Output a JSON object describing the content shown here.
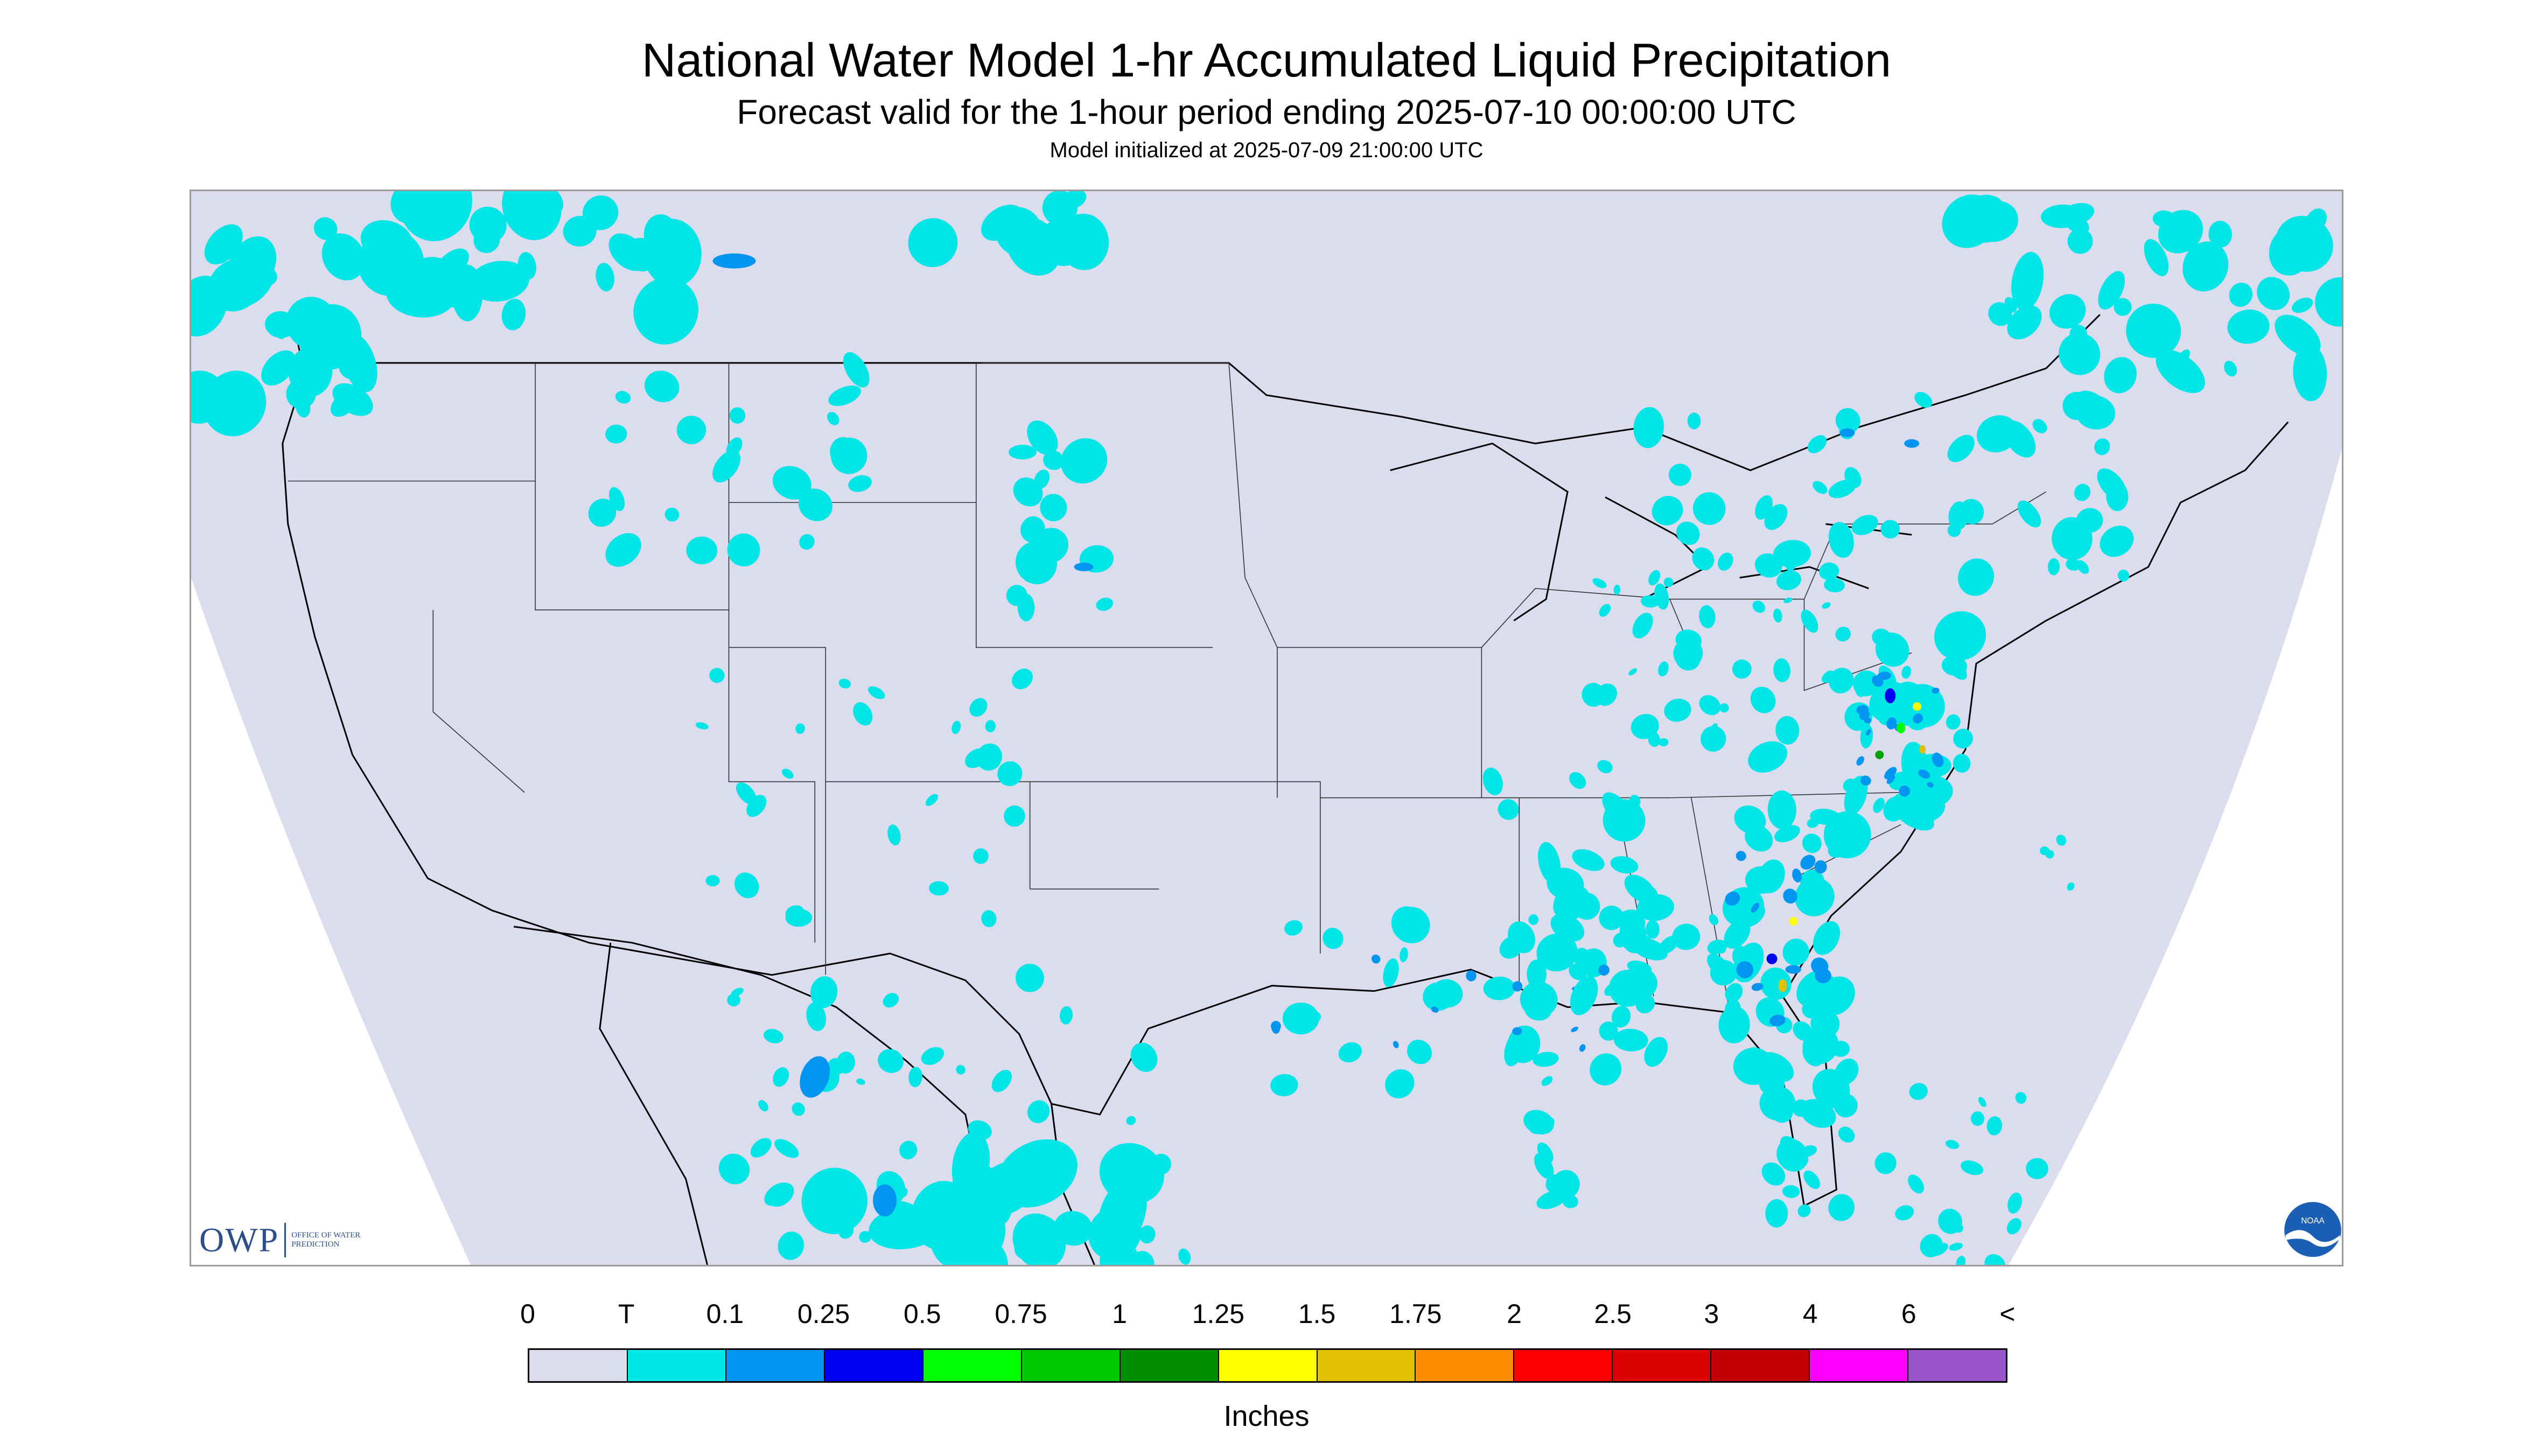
{
  "header": {
    "title": "National Water Model 1-hr Accumulated Liquid Precipitation",
    "subtitle": "Forecast valid for the 1-hour period ending 2025-07-10 00:00:00 UTC",
    "init_line": "Model initialized at 2025-07-09 21:00:00 UTC"
  },
  "map": {
    "background_color": "#dcdcef",
    "outside_projection_color": "#ffffff",
    "boundary_line_color": "#000000",
    "precip_colors": {
      "trace": "#00e5e5",
      "light": "#0096f0",
      "moderate": "#0000f0",
      "green": "#00ff00",
      "green_dark": "#00a000",
      "yellow": "#ffff00",
      "gold": "#e0c000"
    }
  },
  "logos": {
    "owp_mark": "OWP",
    "owp_text": "OFFICE OF WATER PREDICTION",
    "noaa_mark": "NOAA"
  },
  "legend": {
    "labels": [
      "0",
      "T",
      "0.1",
      "0.25",
      "0.5",
      "0.75",
      "1",
      "1.25",
      "1.5",
      "1.75",
      "2",
      "2.5",
      "3",
      "4",
      "6",
      "<"
    ],
    "colors": [
      "#dcdcef",
      "#00e5e5",
      "#0096f0",
      "#0000f0",
      "#00ff00",
      "#00c800",
      "#008c00",
      "#ffff00",
      "#e0c000",
      "#ff8c00",
      "#ff0000",
      "#d80000",
      "#c00000",
      "#ff00ff",
      "#9a55c8"
    ],
    "units": "Inches"
  }
}
